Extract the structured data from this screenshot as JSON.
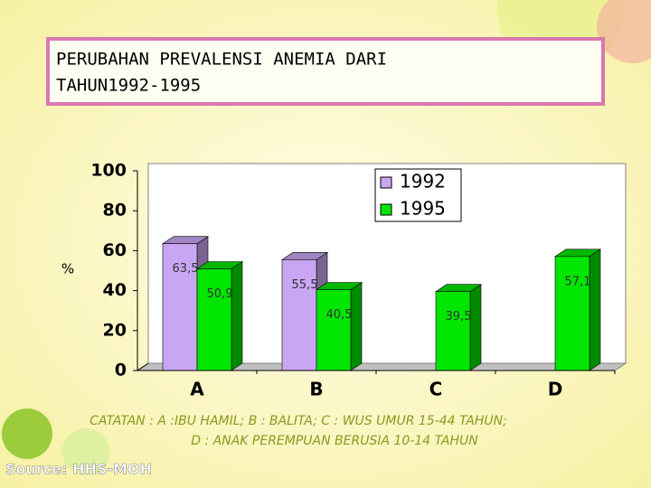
{
  "chart_data": {
    "type": "bar3d",
    "title": "PERUBAHAN PREVALENSI ANEMIA DARI TAHUN1992-1995",
    "y_label": "%",
    "categories": [
      "A",
      "B",
      "C",
      "D"
    ],
    "series": [
      {
        "name": "1992",
        "color": "#c9a6f2",
        "values": [
          63.5,
          55.5,
          null,
          null
        ],
        "value_labels": [
          "63,5",
          "55,5",
          null,
          null
        ]
      },
      {
        "name": "1995",
        "color": "#00e600",
        "values": [
          50.9,
          40.5,
          39.5,
          57.1
        ],
        "value_labels": [
          "50,9",
          "40,5",
          "39,5",
          "57,1"
        ]
      }
    ],
    "ylim": [
      0,
      100
    ],
    "yticks": [
      0,
      20,
      40,
      60,
      80,
      100
    ],
    "grid": false,
    "legend": "top-right",
    "notes": [
      "CATATAN : A :IBU HAMIL; B : BALITA; C : WUS UMUR 15-44 TAHUN;",
      "D : ANAK PEREMPUAN BERUSIA  10-14 TAHUN"
    ],
    "source": "Source: HHS-MOH"
  }
}
